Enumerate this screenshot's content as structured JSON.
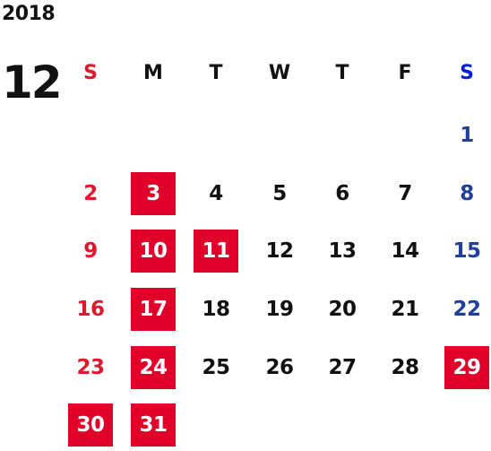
{
  "calendar": {
    "year": "2018",
    "month": "12",
    "weekdays": [
      "S",
      "M",
      "T",
      "W",
      "T",
      "F",
      "S"
    ],
    "colors": {
      "sunday": "#e0182d",
      "saturday": "#1f3f99",
      "weekday": "#111111",
      "highlight_bg": "#e0002a",
      "highlight_text": "#ffffff"
    },
    "weeks": [
      [
        null,
        null,
        null,
        null,
        null,
        null,
        "1"
      ],
      [
        "2",
        "3",
        "4",
        "5",
        "6",
        "7",
        "8"
      ],
      [
        "9",
        "10",
        "11",
        "12",
        "13",
        "14",
        "15"
      ],
      [
        "16",
        "17",
        "18",
        "19",
        "20",
        "21",
        "22"
      ],
      [
        "23",
        "24",
        "25",
        "26",
        "27",
        "28",
        "29"
      ],
      [
        "30",
        "31",
        null,
        null,
        null,
        null,
        null
      ]
    ],
    "highlighted_days": [
      "3",
      "10",
      "11",
      "17",
      "24",
      "29",
      "30",
      "31"
    ]
  }
}
